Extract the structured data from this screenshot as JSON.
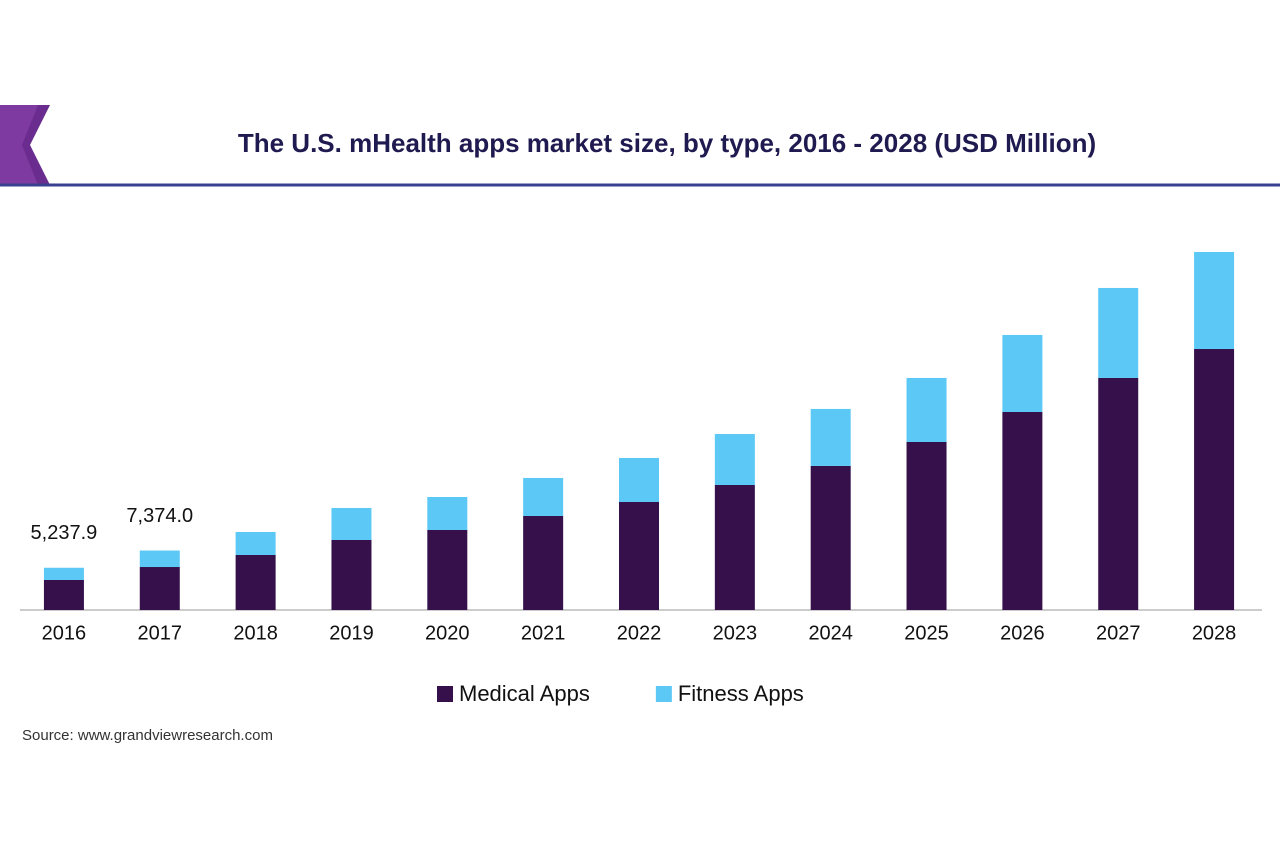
{
  "chart_data": {
    "type": "stacked-bar",
    "title": "The U.S. mHealth apps market size, by type, 2016 - 2028 (USD Million)",
    "categories": [
      "2016",
      "2017",
      "2018",
      "2019",
      "2020",
      "2021",
      "2022",
      "2023",
      "2024",
      "2025",
      "2026",
      "2027",
      "2028"
    ],
    "series": [
      {
        "name": "Medical Apps",
        "color": "#35104a",
        "values": [
          3720,
          5330,
          6820,
          8680,
          9920,
          11660,
          13390,
          15500,
          17860,
          20830,
          24550,
          28770,
          32360
        ]
      },
      {
        "name": "Fitness Apps",
        "color": "#5bc8f5",
        "values": [
          1517.9,
          2044,
          2850,
          3970,
          4090,
          4710,
          5460,
          6320,
          7070,
          7940,
          9550,
          11160,
          12030
        ]
      }
    ],
    "annotations": [
      {
        "category": "2016",
        "value": 5237.9,
        "label": "5,237.9"
      },
      {
        "category": "2017",
        "value": 7374.0,
        "label": "7,374.0"
      }
    ],
    "ylim": [
      0,
      46000
    ],
    "source": "Source:  www.grandviewresearch.com"
  }
}
